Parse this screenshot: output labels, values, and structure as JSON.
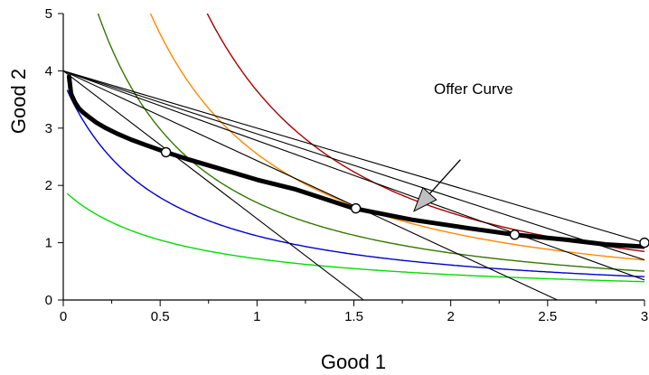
{
  "chart_data": {
    "type": "line",
    "title": "",
    "xlabel": "Good 1",
    "ylabel": "Good 2",
    "xlim": [
      0,
      3
    ],
    "ylim": [
      0,
      5
    ],
    "x_ticks": [
      "0",
      "0.5",
      "1",
      "1.5",
      "2",
      "2.5",
      "3"
    ],
    "y_ticks": [
      "0",
      "1",
      "2",
      "3",
      "4",
      "5"
    ],
    "grid": false,
    "legend": "none",
    "annotation": {
      "text": "Offer Curve",
      "arrow_from": [
        2.05,
        2.45
      ],
      "arrow_to": [
        1.81,
        1.55
      ]
    },
    "indifference_curves": [
      {
        "color": "#00dd00",
        "k": 0.72,
        "exponent": 1.0
      },
      {
        "color": "#0000cc",
        "k": 1.12,
        "exponent": 1.25
      },
      {
        "color": "#337700",
        "k": 1.7,
        "exponent": 1.5
      },
      {
        "color": "#ff8800",
        "k": 2.55,
        "exponent": 1.6
      },
      {
        "color": "#aa0000",
        "k": 3.65,
        "exponent": 1.8
      }
    ],
    "budget_lines": [
      {
        "from": [
          0,
          4
        ],
        "to": [
          1.55,
          0
        ]
      },
      {
        "from": [
          0,
          4
        ],
        "to": [
          2.55,
          0
        ]
      },
      {
        "from": [
          0,
          4
        ],
        "to": [
          3,
          0.35
        ]
      },
      {
        "from": [
          0,
          4
        ],
        "to": [
          3,
          0.7
        ]
      },
      {
        "from": [
          0,
          4
        ],
        "to": [
          3,
          1.0
        ]
      }
    ],
    "offer_curve": {
      "x": [
        0.03,
        0.04,
        0.06,
        0.08,
        0.1,
        0.13,
        0.17,
        0.22,
        0.28,
        0.35,
        0.43,
        0.53,
        0.65,
        0.8,
        1.0,
        1.2,
        1.5,
        1.8,
        2.1,
        2.33,
        2.6,
        2.8,
        3.0
      ],
      "y": [
        3.9,
        3.6,
        3.45,
        3.35,
        3.28,
        3.2,
        3.1,
        3.0,
        2.9,
        2.8,
        2.7,
        2.58,
        2.45,
        2.3,
        2.1,
        1.93,
        1.6,
        1.4,
        1.25,
        1.14,
        1.05,
        0.97,
        0.93
      ]
    },
    "marked_points": [
      {
        "x": 0.53,
        "y": 2.58
      },
      {
        "x": 1.51,
        "y": 1.6
      },
      {
        "x": 2.33,
        "y": 1.14
      },
      {
        "x": 3.0,
        "y": 1.0
      }
    ]
  }
}
